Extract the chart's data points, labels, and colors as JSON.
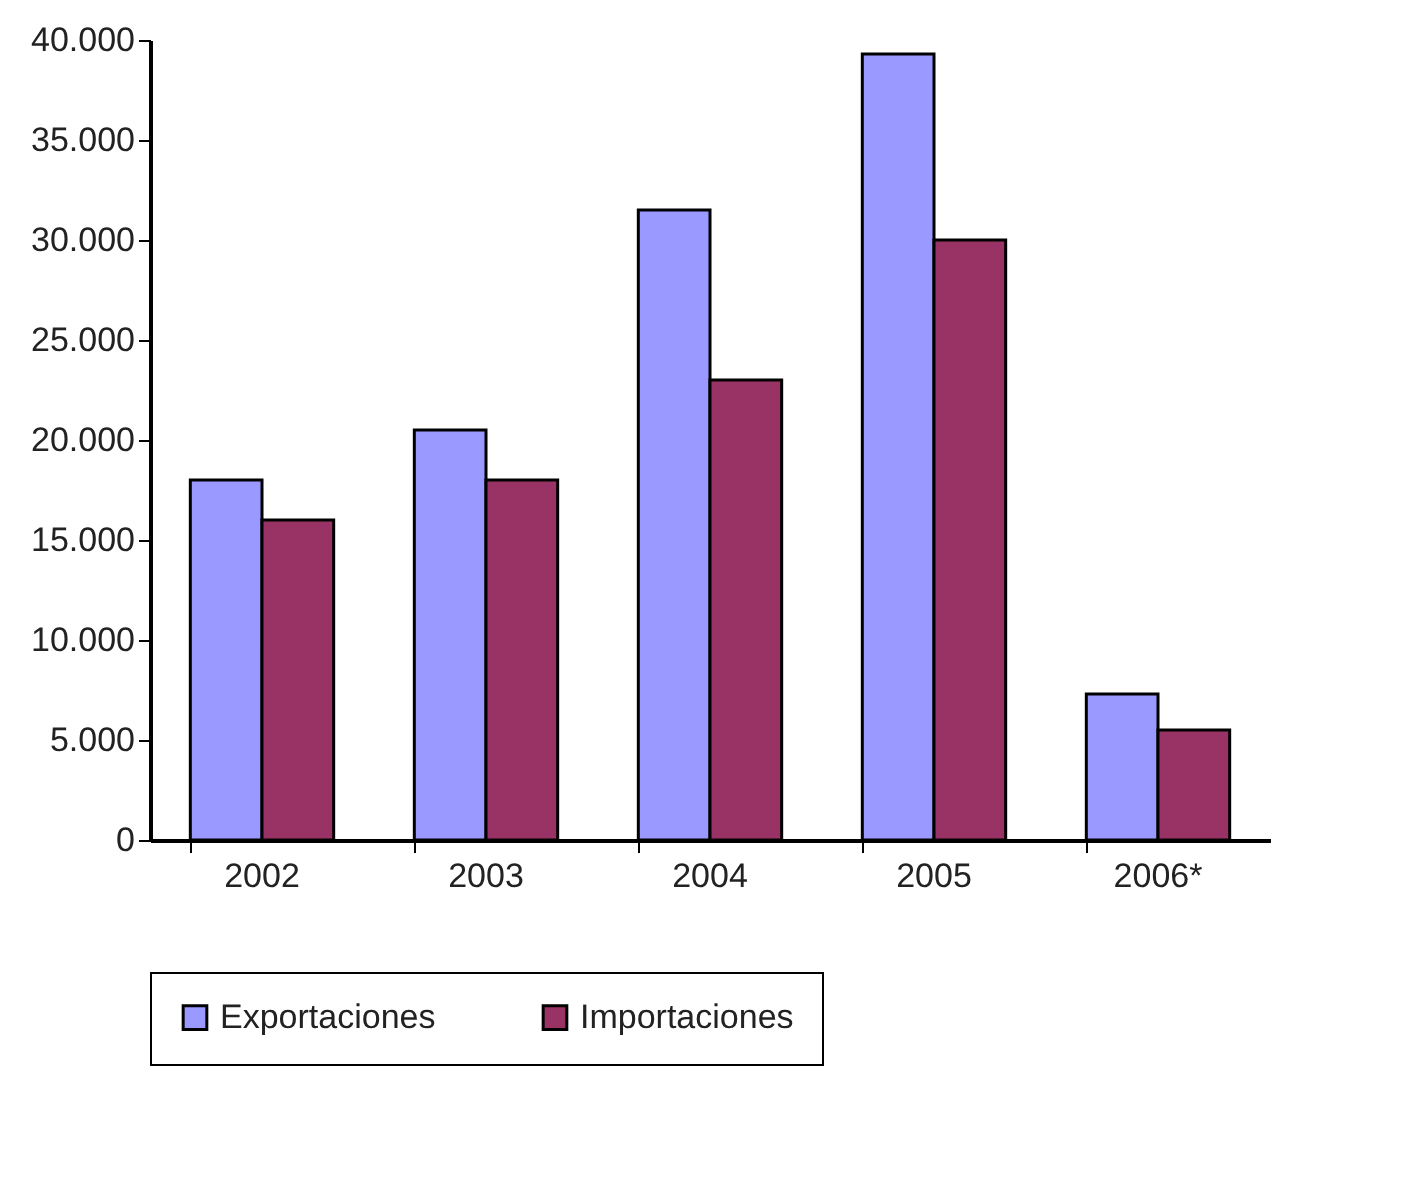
{
  "chart_data": {
    "type": "bar",
    "categories": [
      "2002",
      "2003",
      "2004",
      "2005",
      "2006*"
    ],
    "series": [
      {
        "name": "Exportaciones",
        "color": "#9999ff",
        "values": [
          18000,
          20500,
          31500,
          39300,
          7300
        ]
      },
      {
        "name": "Importaciones",
        "color": "#993366",
        "values": [
          16000,
          18000,
          23000,
          30000,
          5500
        ]
      }
    ],
    "ylim": [
      0,
      40000
    ],
    "yticks": [
      {
        "value": 0,
        "label": "0"
      },
      {
        "value": 5000,
        "label": "5.000"
      },
      {
        "value": 10000,
        "label": "10.000"
      },
      {
        "value": 15000,
        "label": "15.000"
      },
      {
        "value": 20000,
        "label": "20.000"
      },
      {
        "value": 25000,
        "label": "25.000"
      },
      {
        "value": 30000,
        "label": "30.000"
      },
      {
        "value": 35000,
        "label": "35.000"
      },
      {
        "value": 40000,
        "label": "40.000"
      }
    ],
    "grid": false,
    "legend": "bottom"
  }
}
